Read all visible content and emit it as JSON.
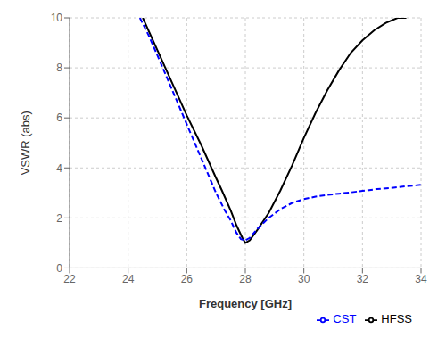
{
  "chart_data": {
    "type": "line",
    "xlabel": "Frequency [GHz]",
    "ylabel": "VSWR (abs)",
    "xlim": [
      22,
      34
    ],
    "ylim": [
      0,
      10
    ],
    "xticks": [
      22,
      24,
      26,
      28,
      30,
      32,
      34
    ],
    "yticks": [
      0,
      2,
      4,
      6,
      8,
      10
    ],
    "grid": true,
    "legend": "lower right",
    "series": [
      {
        "name": "HFSS",
        "color": "#000000",
        "line_style": "solid",
        "x": [
          24.5,
          25.0,
          25.5,
          26.0,
          26.5,
          27.0,
          27.2,
          27.5,
          27.7,
          27.9,
          28.0,
          28.15,
          28.4,
          28.8,
          29.2,
          29.6,
          30.0,
          30.4,
          30.8,
          31.2,
          31.6,
          32.0,
          32.4,
          32.8,
          33.2,
          33.5
        ],
        "values": [
          10.0,
          8.7,
          7.4,
          6.1,
          4.9,
          3.6,
          3.1,
          2.3,
          1.7,
          1.2,
          1.0,
          1.1,
          1.5,
          2.2,
          3.1,
          4.1,
          5.2,
          6.2,
          7.1,
          7.9,
          8.6,
          9.1,
          9.5,
          9.8,
          10.0,
          10.0
        ]
      },
      {
        "name": "CST",
        "color": "#0000ff",
        "line_style": "dashed",
        "x": [
          24.4,
          24.7,
          25.0,
          25.4,
          25.8,
          26.2,
          26.6,
          27.0,
          27.3,
          27.5,
          27.7,
          27.85,
          28.0,
          28.15,
          28.4,
          28.8,
          29.2,
          29.6,
          30.0,
          30.4,
          30.8,
          31.2,
          31.6,
          32.0,
          32.5,
          33.0,
          33.5,
          34.0
        ],
        "values": [
          10.0,
          9.3,
          8.5,
          7.4,
          6.3,
          5.2,
          4.1,
          3.0,
          2.3,
          1.9,
          1.4,
          1.15,
          1.1,
          1.2,
          1.55,
          2.0,
          2.35,
          2.6,
          2.75,
          2.85,
          2.92,
          2.97,
          3.02,
          3.08,
          3.15,
          3.2,
          3.27,
          3.32
        ]
      }
    ]
  }
}
